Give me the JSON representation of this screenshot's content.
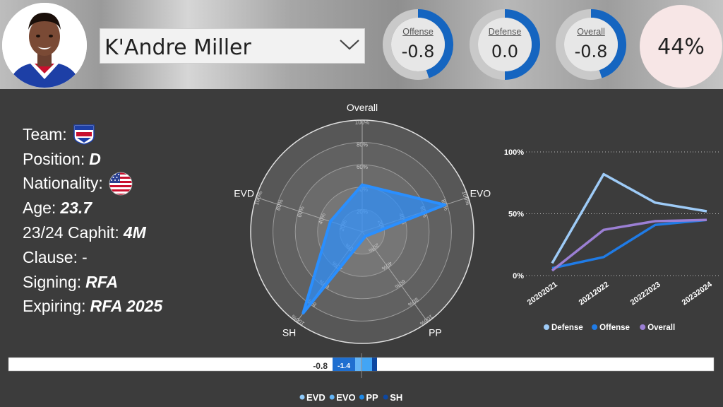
{
  "player": {
    "name": "K'Andre Miller",
    "photo": "player-headshot"
  },
  "gauges": [
    {
      "label": "Offense",
      "value": "-0.8",
      "fill": 0.45
    },
    {
      "label": "Defense",
      "value": "0.0",
      "fill": 0.5
    },
    {
      "label": "Overall",
      "value": "-0.8",
      "fill": 0.45
    }
  ],
  "percentile": "44%",
  "info": {
    "team_label": "Team:",
    "team_logo": "new-york-rangers-logo",
    "position_label": "Position:",
    "position": "D",
    "nationality_label": "Nationality:",
    "nationality_flag": "usa-flag",
    "age_label": "Age:",
    "age": "23.7",
    "caphit_label": "23/24 Caphit:",
    "caphit": "4M",
    "clause_label": "Clause:",
    "clause": "-",
    "signing_label": "Signing:",
    "signing": "RFA",
    "expiring_label": "Expiring:",
    "expiring": "RFA 2025"
  },
  "colors": {
    "defense": "#9ecbf7",
    "offense": "#1f7be6",
    "overall": "#9b7fd4",
    "accent": "#1565c0"
  },
  "chart_data": [
    {
      "type": "radar",
      "axes": [
        "Overall",
        "EVO",
        "PP",
        "SH",
        "EVD"
      ],
      "values": [
        0.42,
        0.78,
        0.05,
        0.9,
        0.3
      ],
      "tick_labels": [
        "20%",
        "40%",
        "60%",
        "80%",
        "100%"
      ],
      "range": [
        0,
        1
      ]
    },
    {
      "type": "line",
      "x": [
        "20202021",
        "20212022",
        "20222023",
        "20232024"
      ],
      "series": [
        {
          "name": "Defense",
          "values": [
            0.1,
            0.82,
            0.59,
            0.52
          ]
        },
        {
          "name": "Offense",
          "values": [
            0.06,
            0.15,
            0.41,
            0.45
          ]
        },
        {
          "name": "Overall",
          "values": [
            0.04,
            0.37,
            0.44,
            0.45
          ]
        }
      ],
      "y_ticks": [
        "100%",
        "50%",
        "0%"
      ],
      "ylim": [
        0,
        1
      ],
      "grid": true,
      "legend": "bottom"
    },
    {
      "type": "bar",
      "labels": [
        "-0.8",
        "-1.4"
      ],
      "series": [
        {
          "name": "EVD"
        },
        {
          "name": "EVO"
        },
        {
          "name": "PP"
        },
        {
          "name": "SH"
        }
      ],
      "legend": "bottom"
    }
  ]
}
